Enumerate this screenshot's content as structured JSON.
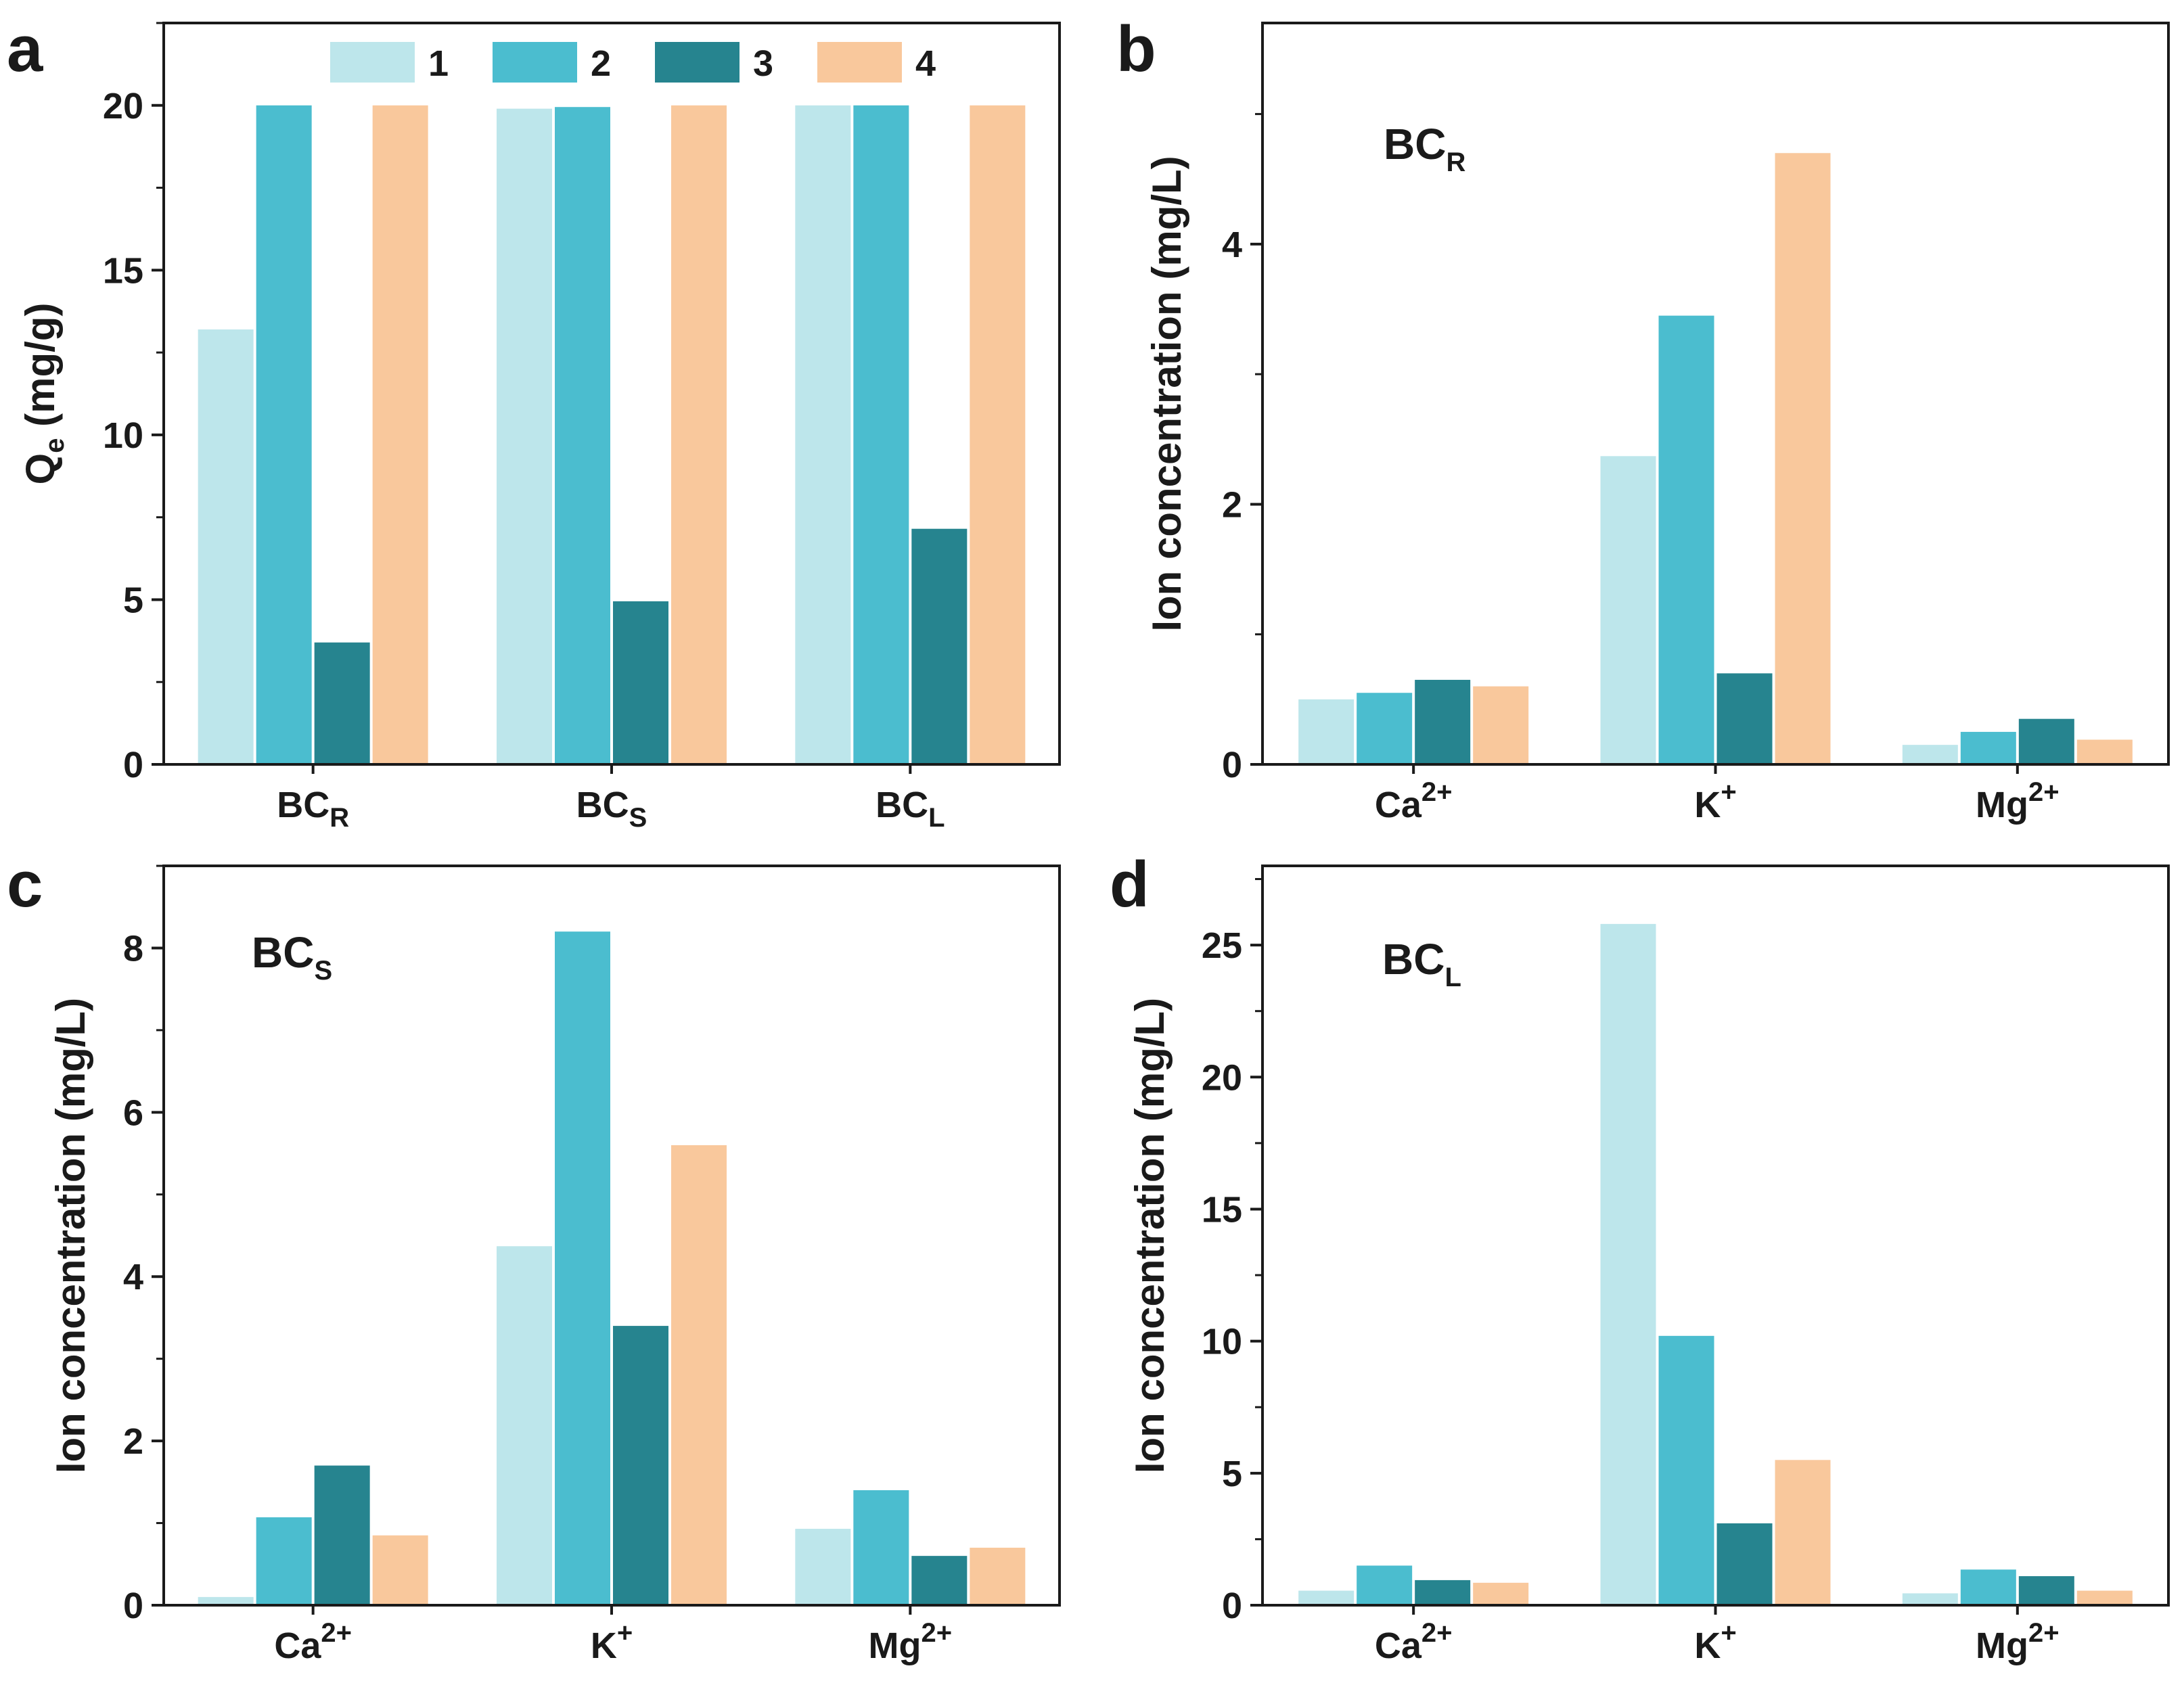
{
  "figure": {
    "colors": [
      "#bde6eb",
      "#4bbdcf",
      "#26848f",
      "#f9c89c"
    ],
    "legend": [
      "1",
      "2",
      "3",
      "4"
    ]
  },
  "chart_data": [
    {
      "type": "bar",
      "panel": "a",
      "ylabel": "Q",
      "ylabel_sub": "e",
      "ylabel_unit": " (mg/g)",
      "ylim": [
        0,
        22.5
      ],
      "yticks": [
        0,
        5,
        10,
        15,
        20
      ],
      "categories": [
        {
          "base": "BC",
          "sub": "R",
          "sup": ""
        },
        {
          "base": "BC",
          "sub": "S",
          "sup": ""
        },
        {
          "base": "BC",
          "sub": "L",
          "sup": ""
        }
      ],
      "series": [
        {
          "name": "1",
          "values": [
            13.2,
            19.9,
            20.0
          ]
        },
        {
          "name": "2",
          "values": [
            20.0,
            19.95,
            20.0
          ]
        },
        {
          "name": "3",
          "values": [
            3.7,
            4.95,
            7.15
          ]
        },
        {
          "name": "4",
          "values": [
            20.0,
            20.0,
            20.0
          ]
        }
      ],
      "inset": null,
      "legend": true
    },
    {
      "type": "bar",
      "panel": "b",
      "ylabel": "Ion concentration (mg/L)",
      "ylabel_sub": "",
      "ylabel_unit": "",
      "ylim": [
        0,
        5.7
      ],
      "yticks": [
        0,
        2,
        4
      ],
      "categories": [
        {
          "base": "Ca",
          "sub": "",
          "sup": "2+"
        },
        {
          "base": "K",
          "sub": "",
          "sup": "+"
        },
        {
          "base": "Mg",
          "sub": "",
          "sup": "2+"
        }
      ],
      "series": [
        {
          "name": "1",
          "values": [
            0.5,
            2.37,
            0.15
          ]
        },
        {
          "name": "2",
          "values": [
            0.55,
            3.45,
            0.25
          ]
        },
        {
          "name": "3",
          "values": [
            0.65,
            0.7,
            0.35
          ]
        },
        {
          "name": "4",
          "values": [
            0.6,
            4.7,
            0.19
          ]
        }
      ],
      "inset": {
        "base": "BC",
        "sub": "R"
      },
      "legend": false
    },
    {
      "type": "bar",
      "panel": "c",
      "ylabel": "Ion concentration (mg/L)",
      "ylabel_sub": "",
      "ylabel_unit": "",
      "ylim": [
        0,
        9
      ],
      "yticks": [
        0,
        2,
        4,
        6,
        8
      ],
      "categories": [
        {
          "base": "Ca",
          "sub": "",
          "sup": "2+"
        },
        {
          "base": "K",
          "sub": "",
          "sup": "+"
        },
        {
          "base": "Mg",
          "sub": "",
          "sup": "2+"
        }
      ],
      "series": [
        {
          "name": "1",
          "values": [
            0.1,
            4.37,
            0.93
          ]
        },
        {
          "name": "2",
          "values": [
            1.07,
            8.2,
            1.4
          ]
        },
        {
          "name": "3",
          "values": [
            1.7,
            3.4,
            0.6
          ]
        },
        {
          "name": "4",
          "values": [
            0.85,
            5.6,
            0.7
          ]
        }
      ],
      "inset": {
        "base": "BC",
        "sub": "S"
      },
      "legend": false
    },
    {
      "type": "bar",
      "panel": "d",
      "ylabel": "Ion concentration (mg/L)",
      "ylabel_sub": "",
      "ylabel_unit": "",
      "ylim": [
        0,
        28
      ],
      "yticks": [
        0,
        5,
        10,
        15,
        20,
        25
      ],
      "categories": [
        {
          "base": "Ca",
          "sub": "",
          "sup": "2+"
        },
        {
          "base": "K",
          "sub": "",
          "sup": "+"
        },
        {
          "base": "Mg",
          "sub": "",
          "sup": "2+"
        }
      ],
      "series": [
        {
          "name": "1",
          "values": [
            0.55,
            25.8,
            0.45
          ]
        },
        {
          "name": "2",
          "values": [
            1.5,
            10.2,
            1.35
          ]
        },
        {
          "name": "3",
          "values": [
            0.95,
            3.1,
            1.1
          ]
        },
        {
          "name": "4",
          "values": [
            0.85,
            5.5,
            0.55
          ]
        }
      ],
      "inset": {
        "base": "BC",
        "sub": "L"
      },
      "legend": false
    }
  ]
}
